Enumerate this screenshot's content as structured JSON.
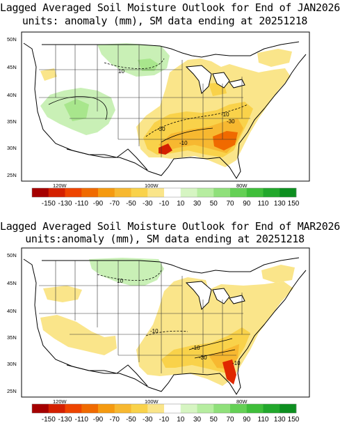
{
  "maps": [
    {
      "title_line1": "Lagged Averaged Soil Moisture Outlook for End of JAN2026",
      "title_line2": "units: anomaly (mm), SM data ending at 20251218",
      "contour_labels": [
        "10",
        "-10",
        "-30",
        "-30",
        "-10"
      ]
    },
    {
      "title_line1": "Lagged Averaged Soil Moisture Outlook for End of MAR2026",
      "title_line2": "units:anomaly (mm), SM data ending at 20251218",
      "contour_labels": [
        "10",
        "-10",
        "-10",
        "-30",
        "-10"
      ]
    }
  ],
  "lat_labels": [
    "50N",
    "45N",
    "40N",
    "35N",
    "30N",
    "25N"
  ],
  "lon_labels": [
    "120W",
    "100W",
    "80W"
  ],
  "legend": {
    "labels": [
      "-150",
      "-130",
      "-110",
      "-90",
      "-70",
      "-50",
      "-30",
      "-10",
      "10",
      "30",
      "50",
      "70",
      "90",
      "110",
      "130",
      "150"
    ],
    "colors": [
      "#a50000",
      "#d42000",
      "#ee4400",
      "#f06a00",
      "#f59a10",
      "#f7b830",
      "#f9d24a",
      "#fae58a",
      "#ffffff",
      "#d6f5c2",
      "#b6eda0",
      "#8fe07a",
      "#64d055",
      "#3fbe3a",
      "#22a82c",
      "#0d8f20"
    ]
  }
}
